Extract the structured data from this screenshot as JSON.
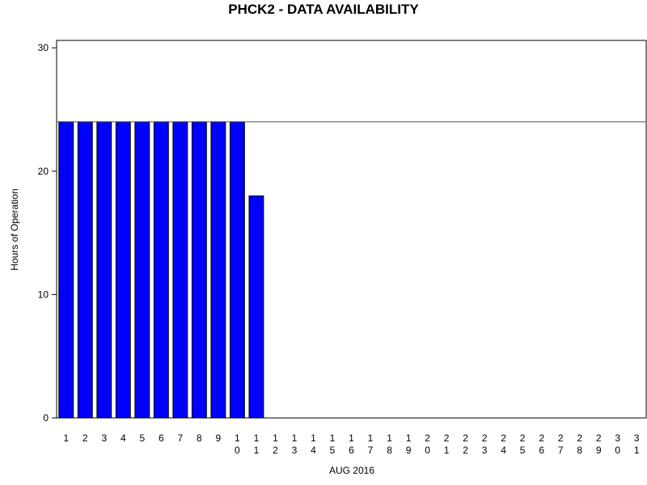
{
  "chart_data": {
    "type": "bar",
    "title": "PHCK2 - DATA AVAILABILITY",
    "x_label": "AUG 2016",
    "y_label": "Hours of Operation",
    "categories": [
      "1",
      "2",
      "3",
      "4",
      "5",
      "6",
      "7",
      "8",
      "9",
      "10",
      "11",
      "12",
      "13",
      "14",
      "15",
      "16",
      "17",
      "18",
      "19",
      "20",
      "21",
      "22",
      "23",
      "24",
      "25",
      "26",
      "27",
      "28",
      "29",
      "30",
      "31"
    ],
    "values": [
      24,
      24,
      24,
      24,
      24,
      24,
      24,
      24,
      24,
      24,
      18,
      null,
      null,
      null,
      null,
      null,
      null,
      null,
      null,
      null,
      null,
      null,
      null,
      null,
      null,
      null,
      null,
      null,
      null,
      null,
      null
    ],
    "color": "#0000ff",
    "reference_line": 24,
    "ylim": [
      0,
      30.6
    ],
    "yticks": [
      0,
      10,
      20,
      30
    ]
  }
}
